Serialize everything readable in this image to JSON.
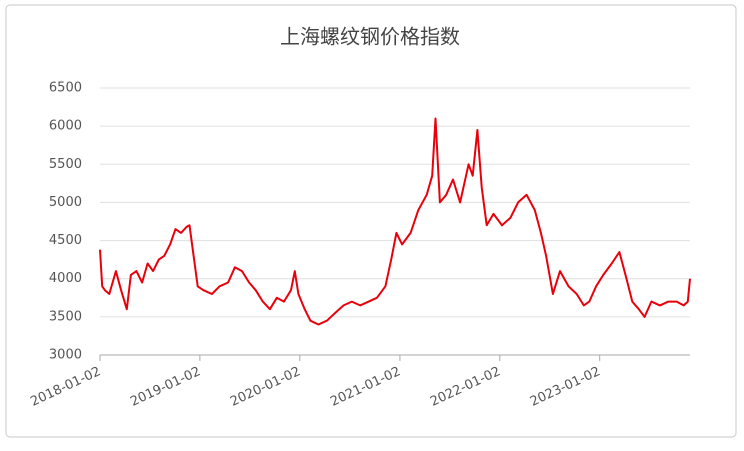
{
  "chart_data": {
    "type": "line",
    "title": "上海螺纹钢价格指数",
    "x": [
      "2018-01-02",
      "2018-01-10",
      "2018-01-20",
      "2018-02-05",
      "2018-03-01",
      "2018-03-20",
      "2018-04-10",
      "2018-04-25",
      "2018-05-15",
      "2018-06-05",
      "2018-06-25",
      "2018-07-15",
      "2018-08-05",
      "2018-08-25",
      "2018-09-15",
      "2018-10-05",
      "2018-10-25",
      "2018-11-15",
      "2018-11-25",
      "2018-12-10",
      "2018-12-25",
      "2019-01-15",
      "2019-02-15",
      "2019-03-15",
      "2019-04-15",
      "2019-05-10",
      "2019-06-05",
      "2019-07-01",
      "2019-07-25",
      "2019-08-20",
      "2019-09-15",
      "2019-10-10",
      "2019-11-05",
      "2019-12-01",
      "2019-12-15",
      "2019-12-28",
      "2020-01-20",
      "2020-02-10",
      "2020-03-10",
      "2020-04-10",
      "2020-05-10",
      "2020-06-10",
      "2020-07-10",
      "2020-08-10",
      "2020-09-10",
      "2020-10-10",
      "2020-11-10",
      "2020-12-01",
      "2020-12-20",
      "2021-01-10",
      "2021-02-10",
      "2021-03-10",
      "2021-04-10",
      "2021-04-30",
      "2021-05-12",
      "2021-05-28",
      "2021-06-20",
      "2021-07-15",
      "2021-08-10",
      "2021-09-10",
      "2021-09-25",
      "2021-10-12",
      "2021-10-28",
      "2021-11-15",
      "2021-12-10",
      "2022-01-10",
      "2022-02-10",
      "2022-03-10",
      "2022-04-10",
      "2022-05-10",
      "2022-06-01",
      "2022-06-20",
      "2022-07-15",
      "2022-08-10",
      "2022-09-10",
      "2022-10-10",
      "2022-11-05",
      "2022-11-25",
      "2022-12-20",
      "2023-01-15",
      "2023-02-15",
      "2023-03-15",
      "2023-04-10",
      "2023-05-01",
      "2023-05-25",
      "2023-06-15",
      "2023-07-10",
      "2023-08-10",
      "2023-09-10",
      "2023-10-10",
      "2023-11-05",
      "2023-11-20",
      "2023-11-28"
    ],
    "series": [
      {
        "name": "上海螺纹钢价格指数",
        "color": "#e8000b",
        "values": [
          4380,
          3900,
          3850,
          3800,
          4100,
          3850,
          3600,
          4050,
          4100,
          3950,
          4200,
          4100,
          4250,
          4300,
          4450,
          4650,
          4600,
          4680,
          4700,
          4300,
          3900,
          3850,
          3800,
          3900,
          3950,
          4150,
          4100,
          3950,
          3850,
          3700,
          3600,
          3750,
          3700,
          3850,
          4100,
          3800,
          3600,
          3450,
          3400,
          3450,
          3550,
          3650,
          3700,
          3650,
          3700,
          3750,
          3900,
          4250,
          4600,
          4450,
          4600,
          4900,
          5100,
          5350,
          6100,
          5000,
          5100,
          5300,
          5000,
          5500,
          5350,
          5950,
          5200,
          4700,
          4850,
          4700,
          4800,
          5000,
          5100,
          4900,
          4600,
          4300,
          3800,
          4100,
          3900,
          3800,
          3650,
          3700,
          3900,
          4050,
          4200,
          4350,
          4000,
          3700,
          3600,
          3500,
          3700,
          3650,
          3700,
          3700,
          3650,
          3700,
          4000
        ]
      }
    ],
    "xlim": [
      "2018-01-02",
      "2023-11-28"
    ],
    "xticks": [
      "2018-01-02",
      "2019-01-02",
      "2020-01-02",
      "2021-01-02",
      "2022-01-02",
      "2023-01-02"
    ],
    "ylim": [
      3000,
      6500
    ],
    "yticks": [
      3000,
      3500,
      4000,
      4500,
      5000,
      5500,
      6000,
      6500
    ],
    "grid": true
  }
}
